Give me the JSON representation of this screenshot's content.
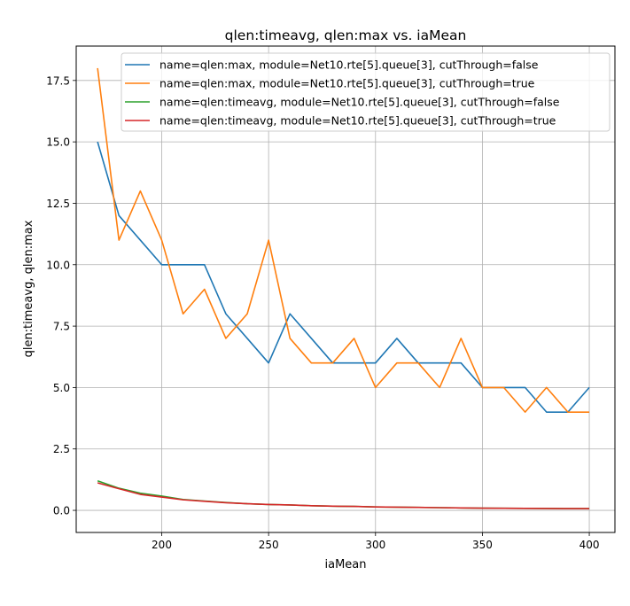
{
  "chart_data": {
    "type": "line",
    "title": "qlen:timeavg, qlen:max vs. iaMean",
    "xlabel": "iaMean",
    "ylabel": "qlen:timeavg, qlen:max",
    "xlim": [
      160,
      412
    ],
    "ylim": [
      -0.9,
      18.9
    ],
    "xticks": [
      200,
      250,
      300,
      350,
      400
    ],
    "yticks": [
      0.0,
      2.5,
      5.0,
      7.5,
      10.0,
      12.5,
      15.0,
      17.5
    ],
    "xtick_labels": [
      "200",
      "250",
      "300",
      "350",
      "400"
    ],
    "ytick_labels": [
      "0.0",
      "2.5",
      "5.0",
      "7.5",
      "10.0",
      "12.5",
      "15.0",
      "17.5"
    ],
    "grid": true,
    "legend_position": "top-right",
    "x": [
      170,
      180,
      190,
      200,
      210,
      220,
      230,
      240,
      250,
      260,
      270,
      280,
      290,
      300,
      310,
      320,
      330,
      340,
      350,
      360,
      370,
      380,
      390,
      400
    ],
    "series": [
      {
        "name": "name=qlen:max, module=Net10.rte[5].queue[3], cutThrough=false",
        "color": "#1f77b4",
        "values": [
          15,
          12,
          11,
          10,
          10,
          10,
          8,
          7,
          6,
          8,
          7,
          6,
          6,
          6,
          7,
          6,
          6,
          6,
          5,
          5,
          5,
          4,
          4,
          5
        ]
      },
      {
        "name": "name=qlen:max, module=Net10.rte[5].queue[3], cutThrough=true",
        "color": "#ff7f0e",
        "values": [
          18,
          11,
          13,
          11,
          8,
          9,
          7,
          8,
          11,
          7,
          6,
          6,
          7,
          5,
          6,
          6,
          5,
          7,
          5,
          5,
          4,
          5,
          4,
          4
        ]
      },
      {
        "name": "name=qlen:timeavg, module=Net10.rte[5].queue[3], cutThrough=false",
        "color": "#2ca02c",
        "values": [
          1.2,
          0.9,
          0.7,
          0.58,
          0.44,
          0.38,
          0.32,
          0.27,
          0.24,
          0.22,
          0.19,
          0.17,
          0.16,
          0.14,
          0.13,
          0.12,
          0.11,
          0.1,
          0.09,
          0.085,
          0.08,
          0.075,
          0.07,
          0.07
        ]
      },
      {
        "name": "name=qlen:timeavg, module=Net10.rte[5].queue[3], cutThrough=true",
        "color": "#d62728",
        "values": [
          1.12,
          0.88,
          0.65,
          0.54,
          0.43,
          0.37,
          0.31,
          0.27,
          0.24,
          0.22,
          0.19,
          0.17,
          0.16,
          0.14,
          0.13,
          0.12,
          0.11,
          0.1,
          0.09,
          0.085,
          0.08,
          0.075,
          0.07,
          0.07
        ]
      }
    ]
  }
}
